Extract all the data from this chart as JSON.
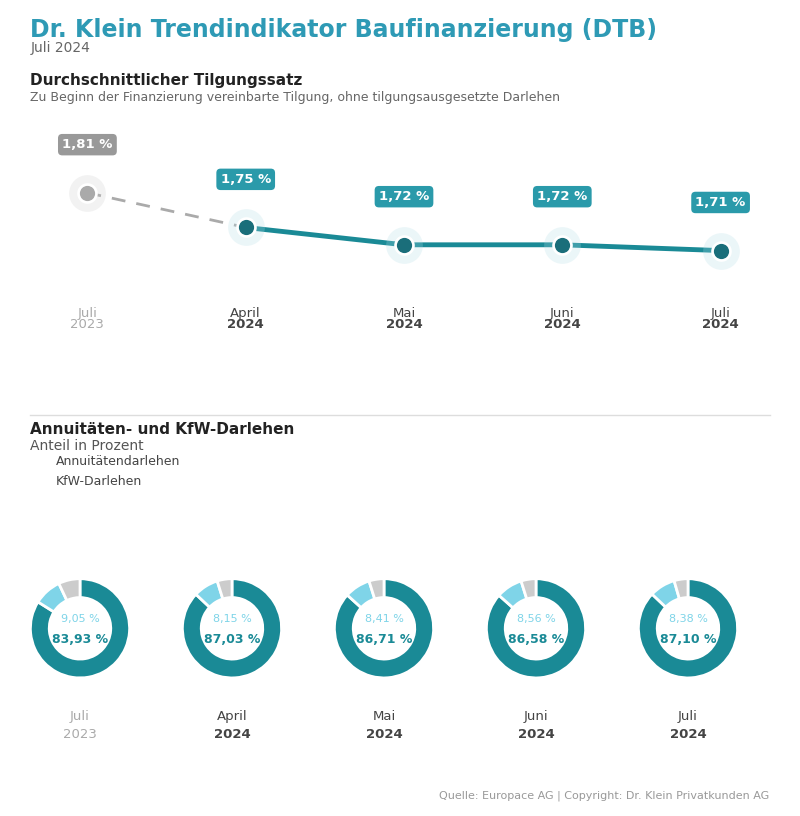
{
  "title": "Dr. Klein Trendindikator Baufinanzierung (DTB)",
  "subtitle": "Juli 2024",
  "bg_color": "#ffffff",
  "title_color": "#2e9ab5",
  "section1_title": "Durchschnittlicher Tilgungssatz",
  "section1_subtitle": "Zu Beginn der Finanzierung vereinbarte Tilgung, ohne tilgungsausgesetzte Darlehen",
  "line_labels_top": [
    "Juli",
    "April",
    "Mai",
    "Juni",
    "Juli"
  ],
  "line_labels_bot": [
    "2023",
    "2024",
    "2024",
    "2024",
    "2024"
  ],
  "line_values": [
    1.81,
    1.75,
    1.72,
    1.72,
    1.71
  ],
  "line_color_teal": "#1a8a96",
  "line_color_gray": "#aaaaaa",
  "dot_color_teal": "#1a6e7a",
  "dot_color_gray": "#aaaaaa",
  "label_bg_teal": "#2a9aaa",
  "label_bg_gray": "#999999",
  "section2_title": "Annuitäten- und KfW-Darlehen",
  "section2_subtitle": "Anteil in Prozent",
  "legend_annuity": "Annuitätendarlehen",
  "legend_kfw": "KfW-Darlehen",
  "donut_labels_top": [
    "Juli",
    "April",
    "Mai",
    "Juni",
    "Juli"
  ],
  "donut_labels_bot": [
    "2023",
    "2024",
    "2024",
    "2024",
    "2024"
  ],
  "donut_annuity": [
    83.93,
    87.03,
    86.71,
    86.58,
    87.1
  ],
  "donut_kfw": [
    9.05,
    8.15,
    8.41,
    8.56,
    8.38
  ],
  "donut_rest": [
    7.02,
    4.82,
    4.88,
    4.86,
    4.52
  ],
  "donut_color_annuity": "#1a8a96",
  "donut_color_kfw": "#7fd4e8",
  "donut_color_rest": "#cccccc",
  "donut_annuity_text_color": "#1a8a96",
  "donut_kfw_text_color": "#7fd4e8",
  "source_text": "Quelle: Europace AG | Copyright: Dr. Klein Privatkunden AG",
  "source_color": "#999999",
  "separator_color": "#dddddd",
  "label_color_gray": "#aaaaaa",
  "label_color_dark": "#444444"
}
